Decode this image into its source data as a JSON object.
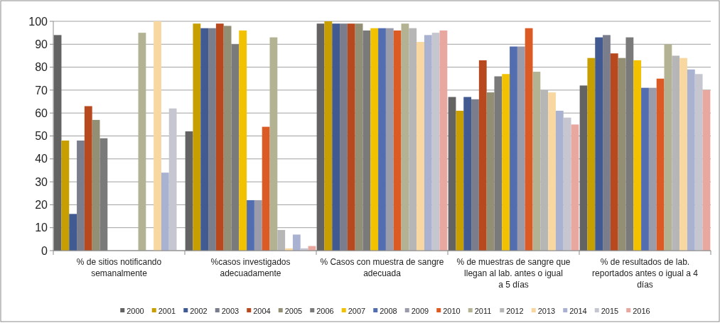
{
  "chart_data": {
    "type": "bar",
    "categories": [
      "% de sitios notificando semanalmente",
      "%casos investigados adecuadamente",
      "% Casos con muestra de sangre adecuada",
      "% de muestras de sangre que llegan al lab. antes o igual a 5 días",
      "% de resultados de lab. reportados antes o igual a 4 días"
    ],
    "series": [
      {
        "name": "2000",
        "color": "#636363",
        "values": [
          94,
          52,
          99,
          67,
          72
        ]
      },
      {
        "name": "2001",
        "color": "#c89f00",
        "values": [
          48,
          99,
          100,
          61,
          84
        ]
      },
      {
        "name": "2002",
        "color": "#415a92",
        "values": [
          16,
          97,
          99,
          67,
          93
        ]
      },
      {
        "name": "2003",
        "color": "#7a7d8c",
        "values": [
          48,
          97,
          99,
          66,
          94
        ]
      },
      {
        "name": "2004",
        "color": "#b8491e",
        "values": [
          63,
          99,
          99,
          83,
          86
        ]
      },
      {
        "name": "2005",
        "color": "#938f75",
        "values": [
          57,
          98,
          99,
          69,
          84
        ]
      },
      {
        "name": "2006",
        "color": "#7a7a7a",
        "values": [
          49,
          90,
          96,
          76,
          93
        ]
      },
      {
        "name": "2007",
        "color": "#f2c200",
        "values": [
          null,
          96,
          97,
          77,
          83
        ]
      },
      {
        "name": "2008",
        "color": "#526eb0",
        "values": [
          null,
          22,
          97,
          89,
          71
        ]
      },
      {
        "name": "2009",
        "color": "#9a9bab",
        "values": [
          null,
          22,
          97,
          89,
          71
        ]
      },
      {
        "name": "2010",
        "color": "#dc5b25",
        "values": [
          null,
          54,
          96,
          97,
          75
        ]
      },
      {
        "name": "2011",
        "color": "#b3b393",
        "values": [
          95,
          93,
          99,
          78,
          90
        ]
      },
      {
        "name": "2012",
        "color": "#b6b6b6",
        "values": [
          null,
          9,
          97,
          70,
          85
        ]
      },
      {
        "name": "2013",
        "color": "#f8d8a0",
        "values": [
          100,
          1,
          91,
          69,
          84
        ]
      },
      {
        "name": "2014",
        "color": "#aab2d1",
        "values": [
          34,
          7,
          94,
          61,
          79
        ]
      },
      {
        "name": "2015",
        "color": "#c6c6d0",
        "values": [
          62,
          1,
          95,
          58,
          77
        ]
      },
      {
        "name": "2016",
        "color": "#e8a8a0",
        "values": [
          null,
          2,
          96,
          55,
          70
        ]
      }
    ],
    "ylim": [
      0,
      100
    ],
    "yticks": [
      0,
      10,
      20,
      30,
      40,
      50,
      60,
      70,
      80,
      90,
      100
    ],
    "grid": "y",
    "legend": "bottom"
  }
}
